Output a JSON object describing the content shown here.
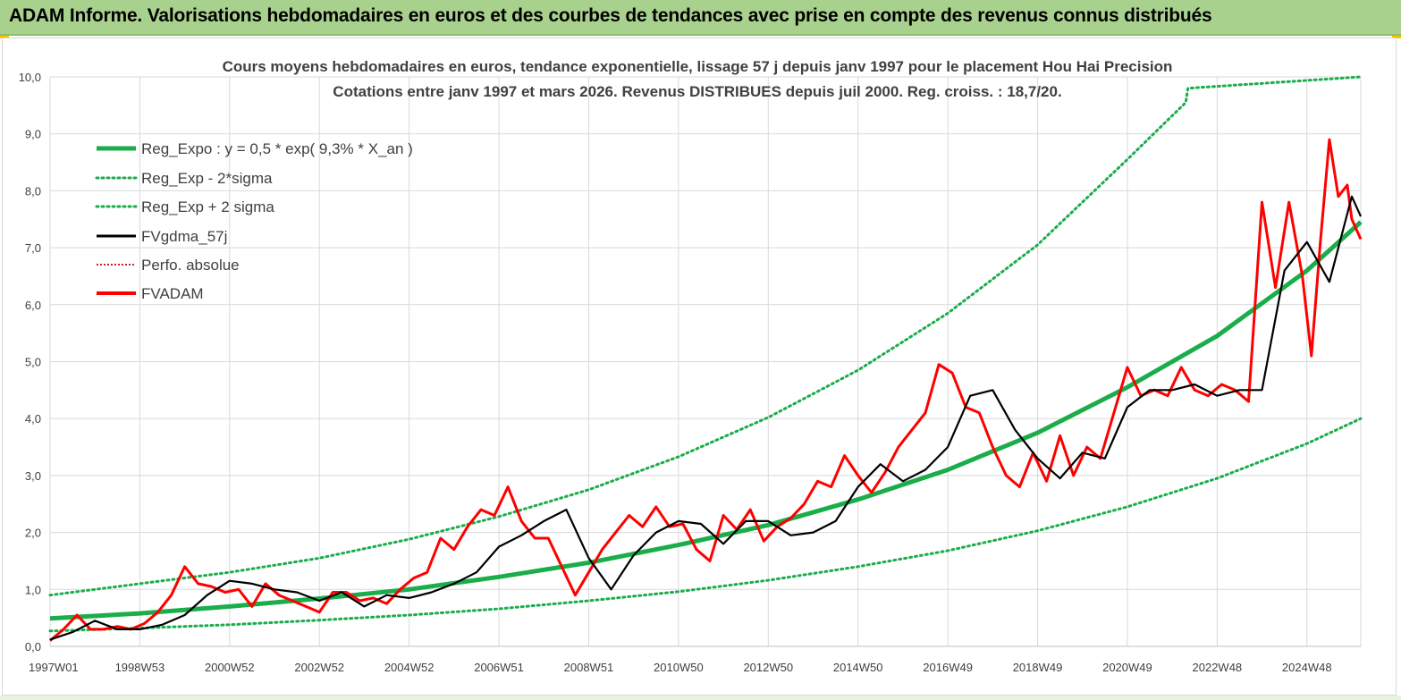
{
  "banner": {
    "title": "ADAM Informe. Valorisations hebdomadaires en euros et des courbes de tendances avec prise en compte des revenus connus distribués"
  },
  "colors": {
    "banner_bg": "#a9d18e",
    "trend": "#1aad4a",
    "smooth": "#000000",
    "price": "#ff0000",
    "perf": "#c00000"
  },
  "chart_data": {
    "type": "line",
    "title": "Cours moyens hebdomadaires en euros, tendance exponentielle, lissage 57 j depuis janv 1997 pour le placement Hou Hai Precision",
    "subtitle": "Cotations entre janv 1997 et mars 2026. Revenus DISTRIBUES depuis juil 2000. Reg. croiss. : 18,7/20.",
    "ylim": [
      0,
      10
    ],
    "xlim": [
      1997.0,
      2026.2
    ],
    "y_ticks": [
      "0,0",
      "1,0",
      "2,0",
      "3,0",
      "4,0",
      "5,0",
      "6,0",
      "7,0",
      "8,0",
      "9,0",
      "10,0"
    ],
    "x_ticks": [
      {
        "label": "1997W01",
        "x": 1997.0
      },
      {
        "label": "1998W53",
        "x": 1999.0
      },
      {
        "label": "2000W52",
        "x": 2001.0
      },
      {
        "label": "2002W52",
        "x": 2003.0
      },
      {
        "label": "2004W52",
        "x": 2005.0
      },
      {
        "label": "2006W51",
        "x": 2007.0
      },
      {
        "label": "2008W51",
        "x": 2009.0
      },
      {
        "label": "2010W50",
        "x": 2011.0
      },
      {
        "label": "2012W50",
        "x": 2013.0
      },
      {
        "label": "2014W50",
        "x": 2015.0
      },
      {
        "label": "2016W49",
        "x": 2017.0
      },
      {
        "label": "2018W49",
        "x": 2019.0
      },
      {
        "label": "2020W49",
        "x": 2021.0
      },
      {
        "label": "2022W48",
        "x": 2023.0
      },
      {
        "label": "2024W48",
        "x": 2025.0
      }
    ],
    "legend": [
      "Reg_Expo : y = 0,5 * exp( 9,3% *  X_an )",
      "Reg_Exp - 2*sigma",
      "Reg_Exp + 2 sigma",
      "FVgdma_57j",
      "Perfo. absolue",
      "FVADAM"
    ],
    "series": [
      {
        "name": "Reg_Expo : y = 0,5 * exp( 9,3% *  X_an )",
        "style": "solid-thick",
        "x": [
          1997.0,
          1999.0,
          2001.0,
          2003.0,
          2005.0,
          2007.0,
          2009.0,
          2011.0,
          2013.0,
          2015.0,
          2017.0,
          2019.0,
          2021.0,
          2023.0,
          2025.0,
          2026.2
        ],
        "values": [
          0.49,
          0.58,
          0.7,
          0.84,
          1.0,
          1.22,
          1.47,
          1.78,
          2.13,
          2.58,
          3.1,
          3.75,
          4.55,
          5.45,
          6.6,
          7.45
        ]
      },
      {
        "name": "Reg_Exp - 2*sigma",
        "style": "dotted",
        "x": [
          1997.0,
          1999.0,
          2001.0,
          2003.0,
          2005.0,
          2007.0,
          2009.0,
          2011.0,
          2013.0,
          2015.0,
          2017.0,
          2019.0,
          2021.0,
          2023.0,
          2025.0,
          2026.2
        ],
        "values": [
          0.27,
          0.32,
          0.38,
          0.46,
          0.55,
          0.66,
          0.8,
          0.96,
          1.16,
          1.4,
          1.68,
          2.03,
          2.45,
          2.95,
          3.56,
          4.0
        ]
      },
      {
        "name": "Reg_Exp + 2 sigma",
        "style": "dotted",
        "x": [
          1997.0,
          1999.0,
          2001.0,
          2003.0,
          2005.0,
          2007.0,
          2009.0,
          2011.0,
          2013.0,
          2015.0,
          2017.0,
          2019.0,
          2021.0,
          2022.3,
          2022.35,
          2026.2
        ],
        "values": [
          0.9,
          1.1,
          1.3,
          1.55,
          1.88,
          2.28,
          2.75,
          3.33,
          4.02,
          4.85,
          5.85,
          7.05,
          8.55,
          9.55,
          9.8,
          10.0
        ]
      },
      {
        "name": "FVgdma_57j",
        "style": "solid",
        "x": [
          1997.0,
          1997.5,
          1998.0,
          1998.5,
          1999.0,
          1999.5,
          2000.0,
          2000.5,
          2001.0,
          2001.5,
          2002.0,
          2002.5,
          2003.0,
          2003.5,
          2004.0,
          2004.5,
          2005.0,
          2005.5,
          2006.0,
          2006.5,
          2007.0,
          2007.5,
          2008.0,
          2008.5,
          2009.0,
          2009.5,
          2010.0,
          2010.5,
          2011.0,
          2011.5,
          2012.0,
          2012.5,
          2013.0,
          2013.5,
          2014.0,
          2014.5,
          2015.0,
          2015.5,
          2016.0,
          2016.5,
          2017.0,
          2017.5,
          2018.0,
          2018.5,
          2019.0,
          2019.5,
          2020.0,
          2020.5,
          2021.0,
          2021.5,
          2022.0,
          2022.5,
          2023.0,
          2023.5,
          2024.0,
          2024.5,
          2025.0,
          2025.5,
          2026.0,
          2026.2
        ],
        "values": [
          0.12,
          0.25,
          0.45,
          0.3,
          0.3,
          0.38,
          0.55,
          0.9,
          1.15,
          1.1,
          1.0,
          0.95,
          0.8,
          0.95,
          0.7,
          0.9,
          0.85,
          0.95,
          1.1,
          1.3,
          1.75,
          1.95,
          2.2,
          2.4,
          1.55,
          1.0,
          1.6,
          2.0,
          2.2,
          2.15,
          1.8,
          2.2,
          2.2,
          1.95,
          2.0,
          2.2,
          2.8,
          3.2,
          2.9,
          3.1,
          3.5,
          4.4,
          4.5,
          3.8,
          3.3,
          2.95,
          3.4,
          3.3,
          4.2,
          4.5,
          4.5,
          4.6,
          4.4,
          4.5,
          4.5,
          6.6,
          7.1,
          6.4,
          7.9,
          7.55
        ]
      },
      {
        "name": "Perfo. absolue",
        "style": "dotted-thin",
        "x": [],
        "values": []
      },
      {
        "name": "FVADAM",
        "style": "solid-red",
        "x": [
          1997.0,
          1997.3,
          1997.6,
          1997.9,
          1998.2,
          1998.5,
          1998.8,
          1999.1,
          1999.4,
          1999.7,
          2000.0,
          2000.3,
          2000.6,
          2000.9,
          2001.2,
          2001.5,
          2001.8,
          2002.1,
          2002.4,
          2002.7,
          2003.0,
          2003.3,
          2003.6,
          2003.9,
          2004.2,
          2004.5,
          2004.8,
          2005.1,
          2005.4,
          2005.7,
          2006.0,
          2006.3,
          2006.6,
          2006.9,
          2007.2,
          2007.5,
          2007.8,
          2008.1,
          2008.4,
          2008.7,
          2009.0,
          2009.3,
          2009.6,
          2009.9,
          2010.2,
          2010.5,
          2010.8,
          2011.1,
          2011.4,
          2011.7,
          2012.0,
          2012.3,
          2012.6,
          2012.9,
          2013.2,
          2013.5,
          2013.8,
          2014.1,
          2014.4,
          2014.7,
          2015.0,
          2015.3,
          2015.6,
          2015.9,
          2016.2,
          2016.5,
          2016.8,
          2017.1,
          2017.4,
          2017.7,
          2018.0,
          2018.3,
          2018.6,
          2018.9,
          2019.2,
          2019.5,
          2019.8,
          2020.1,
          2020.4,
          2020.7,
          2021.0,
          2021.3,
          2021.6,
          2021.9,
          2022.2,
          2022.5,
          2022.8,
          2023.1,
          2023.4,
          2023.7,
          2024.0,
          2024.3,
          2024.6,
          2024.9,
          2025.1,
          2025.3,
          2025.5,
          2025.7,
          2025.9,
          2026.0,
          2026.2
        ],
        "values": [
          0.1,
          0.3,
          0.55,
          0.3,
          0.3,
          0.35,
          0.3,
          0.4,
          0.6,
          0.9,
          1.4,
          1.1,
          1.05,
          0.95,
          1.0,
          0.7,
          1.1,
          0.9,
          0.8,
          0.7,
          0.6,
          0.95,
          0.95,
          0.8,
          0.85,
          0.75,
          1.0,
          1.2,
          1.3,
          1.9,
          1.7,
          2.1,
          2.4,
          2.3,
          2.8,
          2.2,
          1.9,
          1.9,
          1.4,
          0.9,
          1.3,
          1.7,
          2.0,
          2.3,
          2.1,
          2.45,
          2.1,
          2.15,
          1.7,
          1.5,
          2.3,
          2.05,
          2.4,
          1.85,
          2.1,
          2.25,
          2.5,
          2.9,
          2.8,
          3.35,
          3.0,
          2.7,
          3.05,
          3.5,
          3.8,
          4.1,
          4.95,
          4.8,
          4.2,
          4.1,
          3.5,
          3.0,
          2.8,
          3.4,
          2.9,
          3.7,
          3.0,
          3.5,
          3.3,
          4.1,
          4.9,
          4.4,
          4.5,
          4.4,
          4.9,
          4.5,
          4.4,
          4.6,
          4.5,
          4.3,
          7.8,
          6.3,
          7.8,
          6.5,
          5.1,
          7.1,
          8.9,
          7.9,
          8.1,
          7.5,
          7.15
        ]
      }
    ]
  }
}
